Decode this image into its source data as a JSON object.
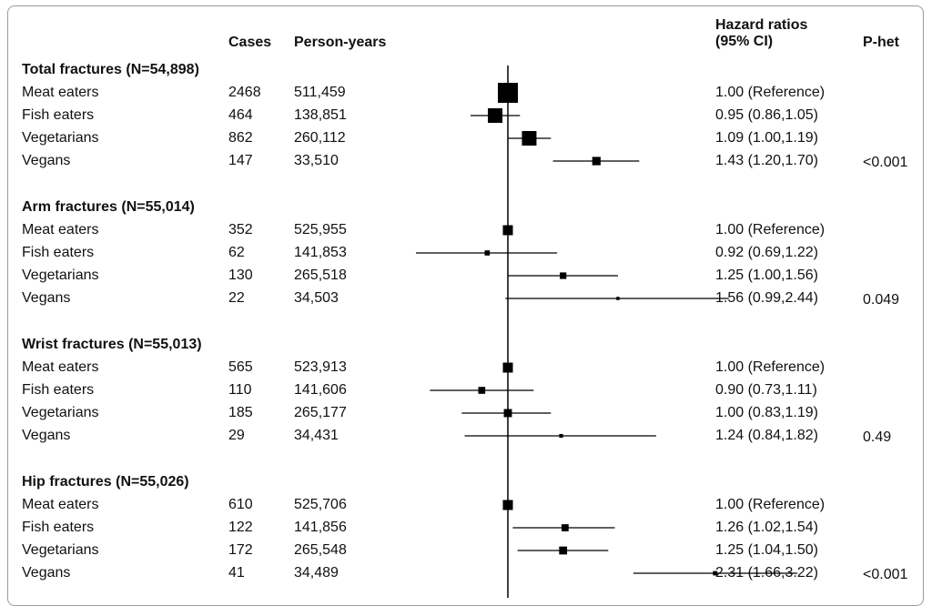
{
  "chart_data": {
    "type": "forest",
    "headers": {
      "cases": "Cases",
      "person_years": "Person-years",
      "hr_line1": "Hazard ratios",
      "hr_line2": "(95% CI)",
      "phet": "P-het"
    },
    "reference_line": 1.0,
    "x_scale": "log",
    "groups": [
      {
        "title": "Total fractures (N=54,898)",
        "phet": "<0.001",
        "rows": [
          {
            "label": "Meat eaters",
            "cases": "2468",
            "person_years": "511,459",
            "hr_text": "1.00 (Reference)",
            "hr": 1.0,
            "lo": null,
            "hi": null
          },
          {
            "label": "Fish eaters",
            "cases": "464",
            "person_years": "138,851",
            "hr_text": "0.95 (0.86,1.05)",
            "hr": 0.95,
            "lo": 0.86,
            "hi": 1.05
          },
          {
            "label": "Vegetarians",
            "cases": "862",
            "person_years": "260,112",
            "hr_text": "1.09 (1.00,1.19)",
            "hr": 1.09,
            "lo": 1.0,
            "hi": 1.19
          },
          {
            "label": "Vegans",
            "cases": "147",
            "person_years": "33,510",
            "hr_text": "1.43 (1.20,1.70)",
            "hr": 1.43,
            "lo": 1.2,
            "hi": 1.7
          }
        ]
      },
      {
        "title": "Arm fractures (N=55,014)",
        "phet": "0.049",
        "rows": [
          {
            "label": "Meat eaters",
            "cases": "352",
            "person_years": "525,955",
            "hr_text": "1.00 (Reference)",
            "hr": 1.0,
            "lo": null,
            "hi": null
          },
          {
            "label": "Fish eaters",
            "cases": "62",
            "person_years": "141,853",
            "hr_text": "0.92 (0.69,1.22)",
            "hr": 0.92,
            "lo": 0.69,
            "hi": 1.22
          },
          {
            "label": "Vegetarians",
            "cases": "130",
            "person_years": "265,518",
            "hr_text": "1.25 (1.00,1.56)",
            "hr": 1.25,
            "lo": 1.0,
            "hi": 1.56
          },
          {
            "label": "Vegans",
            "cases": "22",
            "person_years": "34,503",
            "hr_text": "1.56 (0.99,2.44)",
            "hr": 1.56,
            "lo": 0.99,
            "hi": 2.44
          }
        ]
      },
      {
        "title": "Wrist fractures (N=55,013)",
        "phet": "0.49",
        "rows": [
          {
            "label": "Meat eaters",
            "cases": "565",
            "person_years": "523,913",
            "hr_text": "1.00 (Reference)",
            "hr": 1.0,
            "lo": null,
            "hi": null
          },
          {
            "label": "Fish eaters",
            "cases": "110",
            "person_years": "141,606",
            "hr_text": "0.90 (0.73,1.11)",
            "hr": 0.9,
            "lo": 0.73,
            "hi": 1.11
          },
          {
            "label": "Vegetarians",
            "cases": "185",
            "person_years": "265,177",
            "hr_text": "1.00 (0.83,1.19)",
            "hr": 1.0,
            "lo": 0.83,
            "hi": 1.19
          },
          {
            "label": "Vegans",
            "cases": "29",
            "person_years": "34,431",
            "hr_text": "1.24 (0.84,1.82)",
            "hr": 1.24,
            "lo": 0.84,
            "hi": 1.82
          }
        ]
      },
      {
        "title": "Hip fractures (N=55,026)",
        "phet": "<0.001",
        "rows": [
          {
            "label": "Meat eaters",
            "cases": "610",
            "person_years": "525,706",
            "hr_text": "1.00 (Reference)",
            "hr": 1.0,
            "lo": null,
            "hi": null
          },
          {
            "label": "Fish eaters",
            "cases": "122",
            "person_years": "141,856",
            "hr_text": "1.26 (1.02,1.54)",
            "hr": 1.26,
            "lo": 1.02,
            "hi": 1.54
          },
          {
            "label": "Vegetarians",
            "cases": "172",
            "person_years": "265,548",
            "hr_text": "1.25 (1.04,1.50)",
            "hr": 1.25,
            "lo": 1.04,
            "hi": 1.5
          },
          {
            "label": "Vegans",
            "cases": "41",
            "person_years": "34,489",
            "hr_text": "2.31 (1.66,3.22)",
            "hr": 2.31,
            "lo": 1.66,
            "hi": 3.22
          }
        ]
      }
    ]
  }
}
